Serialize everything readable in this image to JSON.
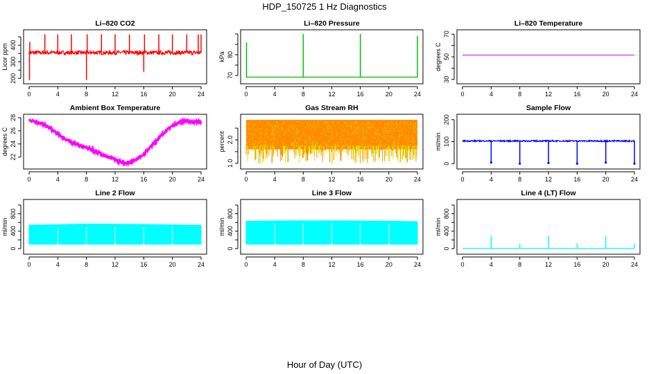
{
  "figure": {
    "title": "HDP_150725  1 Hz Diagnostics",
    "xlabel": "Hour of Day (UTC)"
  },
  "chart_data": [
    {
      "type": "line",
      "title": "Li–820 CO2",
      "ylabel": "Licor ppm",
      "color": "#ff0000",
      "xlim": [
        0,
        24
      ],
      "ylim": [
        180,
        480
      ],
      "xticks": [
        0,
        4,
        8,
        12,
        16,
        20,
        24
      ],
      "yticks": [
        200,
        250,
        300,
        350,
        400,
        450
      ],
      "yticklabels": [
        "200",
        "",
        "300",
        "",
        "400",
        ""
      ],
      "baseline": 355,
      "noise": 12,
      "spikes": [
        {
          "x": 0.05,
          "y": 190
        },
        {
          "x": 0.1,
          "y": 420
        },
        {
          "x": 2.2,
          "y": 465
        },
        {
          "x": 4.0,
          "y": 465
        },
        {
          "x": 5.9,
          "y": 465
        },
        {
          "x": 8.0,
          "y": 190
        },
        {
          "x": 8.1,
          "y": 465
        },
        {
          "x": 10.1,
          "y": 465
        },
        {
          "x": 12.0,
          "y": 465
        },
        {
          "x": 14.0,
          "y": 465
        },
        {
          "x": 16.0,
          "y": 240
        },
        {
          "x": 16.1,
          "y": 465
        },
        {
          "x": 18.1,
          "y": 465
        },
        {
          "x": 20.0,
          "y": 465
        },
        {
          "x": 22.0,
          "y": 465
        },
        {
          "x": 23.6,
          "y": 465
        },
        {
          "x": 24.0,
          "y": 465
        }
      ]
    },
    {
      "type": "line",
      "title": "Li–820 Pressure",
      "ylabel": "kPa",
      "color": "#00c000",
      "xlim": [
        0,
        24
      ],
      "ylim": [
        67,
        91
      ],
      "xticks": [
        0,
        4,
        8,
        12,
        16,
        20,
        24
      ],
      "yticks": [
        70,
        75,
        80,
        85,
        90
      ],
      "yticklabels": [
        "70",
        "",
        "80",
        "",
        ""
      ],
      "baseline": 69.2,
      "spikes": [
        {
          "x": 0.05,
          "y": 86
        },
        {
          "x": 8.0,
          "y": 90
        },
        {
          "x": 16.0,
          "y": 90
        },
        {
          "x": 24.0,
          "y": 89
        }
      ]
    },
    {
      "type": "line",
      "title": "Li–820 Temperature",
      "ylabel": "degrees C",
      "color": "#e000e0",
      "xlim": [
        0,
        24
      ],
      "ylim": [
        28,
        72
      ],
      "xticks": [
        0,
        4,
        8,
        12,
        16,
        20,
        24
      ],
      "yticks": [
        30,
        40,
        50,
        60,
        70
      ],
      "yticklabels": [
        "30",
        "",
        "50",
        "",
        "70"
      ],
      "x": [
        0,
        24
      ],
      "y": [
        51.5,
        51.5
      ]
    },
    {
      "type": "line",
      "title": "Ambient Box Temperature",
      "ylabel": "degrees C",
      "color": "#ff00ff",
      "xlim": [
        0,
        24
      ],
      "ylim": [
        20.5,
        28.2
      ],
      "xticks": [
        0,
        4,
        8,
        12,
        16,
        20,
        24
      ],
      "yticks": [
        22,
        24,
        26,
        28
      ],
      "yticklabels": [
        "22",
        "24",
        "26",
        "28"
      ],
      "x": [
        0,
        1,
        2,
        3,
        4,
        5,
        6,
        7,
        8,
        9,
        10,
        11,
        12,
        13,
        14,
        15,
        16,
        17,
        18,
        19,
        20,
        21,
        22,
        23,
        24
      ],
      "y": [
        27.6,
        27.4,
        27.0,
        26.3,
        25.5,
        24.8,
        24.2,
        23.8,
        23.4,
        23.0,
        22.5,
        22.0,
        21.6,
        21.1,
        21.2,
        21.7,
        22.5,
        23.6,
        24.8,
        25.9,
        26.8,
        27.3,
        27.5,
        27.3,
        27.4
      ],
      "noise": 0.18
    },
    {
      "type": "scatter",
      "title": "Gas Stream RH",
      "ylabel": "percent",
      "color": "#ff8c00",
      "color2": "#e0e000",
      "xlim": [
        0,
        24
      ],
      "ylim": [
        0.85,
        3.0
      ],
      "xticks": [
        0,
        4,
        8,
        12,
        16,
        20,
        24
      ],
      "yticks": [
        1.0,
        1.5,
        2.0,
        2.5
      ],
      "yticklabels": [
        "1.0",
        "",
        "2.0",
        ""
      ],
      "band": [
        1.0,
        2.85
      ]
    },
    {
      "type": "line",
      "title": "Sample Flow",
      "ylabel": "ml/min",
      "color": "#0000ff",
      "xlim": [
        0,
        24
      ],
      "ylim": [
        -15,
        215
      ],
      "xticks": [
        0,
        4,
        8,
        12,
        16,
        20,
        24
      ],
      "yticks": [
        0,
        100,
        200
      ],
      "yticklabels": [
        "0",
        "100",
        "200"
      ],
      "baseline": 103,
      "noise": 3,
      "dips": [
        {
          "x": 4.0,
          "y": 5
        },
        {
          "x": 8.0,
          "y": 0
        },
        {
          "x": 12.0,
          "y": 3
        },
        {
          "x": 16.0,
          "y": 0
        },
        {
          "x": 20.0,
          "y": 5
        },
        {
          "x": 24.0,
          "y": 0
        }
      ]
    },
    {
      "type": "area",
      "title": "Line 2 Flow",
      "ylabel": "ml/min",
      "color": "#00ffff",
      "xlim": [
        0,
        24
      ],
      "ylim": [
        -80,
        1080
      ],
      "xticks": [
        0,
        4,
        8,
        12,
        16,
        20,
        24
      ],
      "yticks": [
        0,
        200,
        400,
        600,
        800,
        1000
      ],
      "yticklabels": [
        "0",
        "",
        "400",
        "",
        "800",
        ""
      ],
      "low": 100,
      "x": [
        0,
        4,
        8,
        12,
        16,
        20,
        24
      ],
      "high": [
        540,
        550,
        565,
        560,
        555,
        545,
        535
      ],
      "gaps": [
        4,
        8,
        12,
        16,
        20
      ]
    },
    {
      "type": "area",
      "title": "Line 3 Flow",
      "ylabel": "ml/min",
      "color": "#00ffff",
      "xlim": [
        0,
        24
      ],
      "ylim": [
        -80,
        1080
      ],
      "xticks": [
        0,
        4,
        8,
        12,
        16,
        20,
        24
      ],
      "yticks": [
        0,
        200,
        400,
        600,
        800,
        1000
      ],
      "yticklabels": [
        "0",
        "",
        "400",
        "",
        "800",
        ""
      ],
      "low": 100,
      "x": [
        0,
        4,
        8,
        12,
        16,
        20,
        24
      ],
      "high": [
        630,
        635,
        640,
        640,
        635,
        630,
        620
      ],
      "gaps": [
        4,
        8,
        12,
        16,
        20
      ]
    },
    {
      "type": "line",
      "title": "Line 4 (LT) Flow",
      "ylabel": "ml/min",
      "color": "#00ffff",
      "xlim": [
        0,
        24
      ],
      "ylim": [
        -80,
        1080
      ],
      "xticks": [
        0,
        4,
        8,
        12,
        16,
        20,
        24
      ],
      "yticks": [
        0,
        200,
        400,
        600,
        800,
        1000
      ],
      "yticklabels": [
        "0",
        "",
        "400",
        "",
        "800",
        ""
      ],
      "baseline": 5,
      "spikes": [
        {
          "x": 4.0,
          "y": 290
        },
        {
          "x": 8.0,
          "y": 110
        },
        {
          "x": 12.0,
          "y": 290
        },
        {
          "x": 16.0,
          "y": 110
        },
        {
          "x": 20.0,
          "y": 280
        },
        {
          "x": 24.0,
          "y": 110
        }
      ]
    }
  ]
}
